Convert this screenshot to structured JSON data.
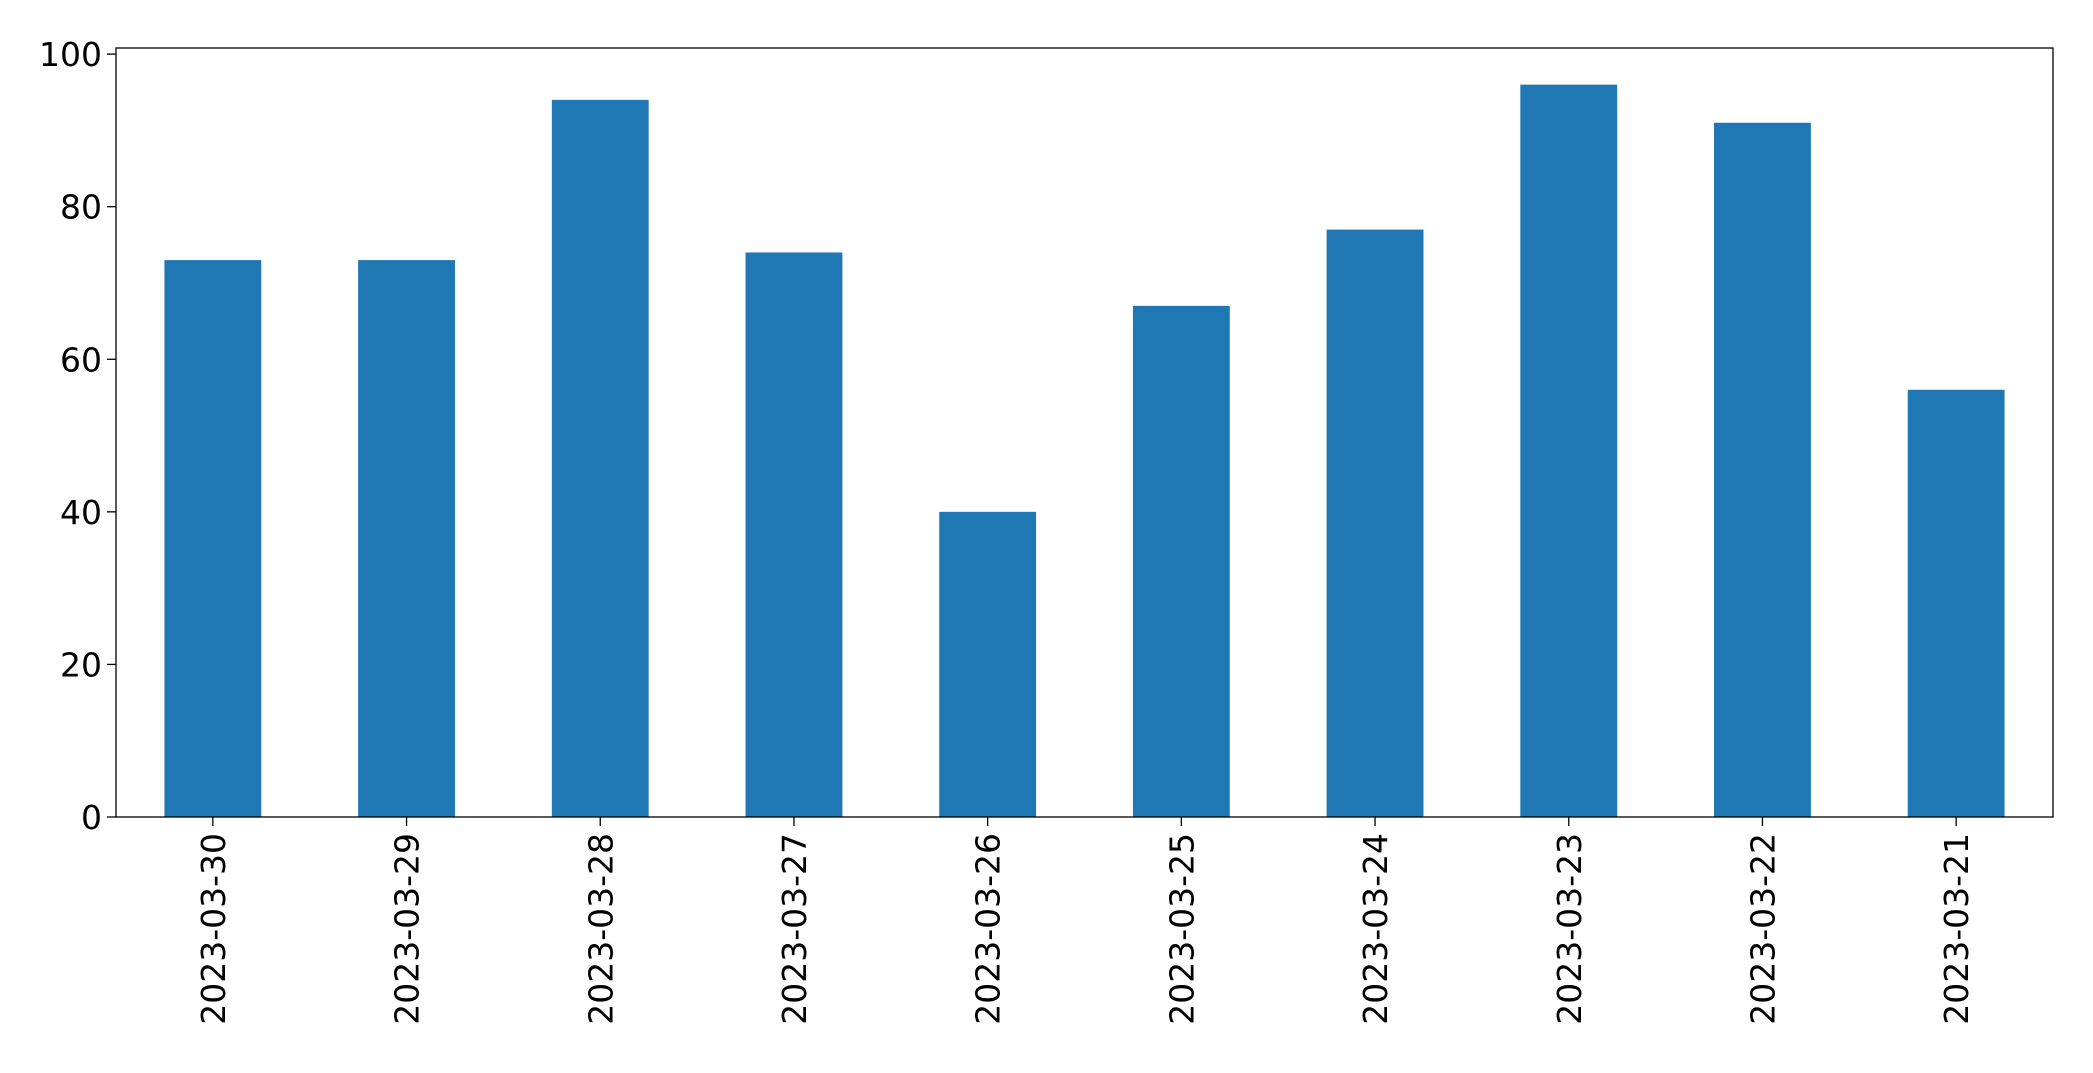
{
  "chart_data": {
    "type": "bar",
    "categories": [
      "2023-03-30",
      "2023-03-29",
      "2023-03-28",
      "2023-03-27",
      "2023-03-26",
      "2023-03-25",
      "2023-03-24",
      "2023-03-23",
      "2023-03-22",
      "2023-03-21"
    ],
    "values": [
      73,
      73,
      94,
      74,
      40,
      67,
      77,
      96,
      91,
      56
    ],
    "color": "#1f77b4",
    "ylim": [
      0,
      100.8
    ],
    "yticks": [
      0,
      20,
      40,
      60,
      80,
      100
    ],
    "grid": false
  }
}
